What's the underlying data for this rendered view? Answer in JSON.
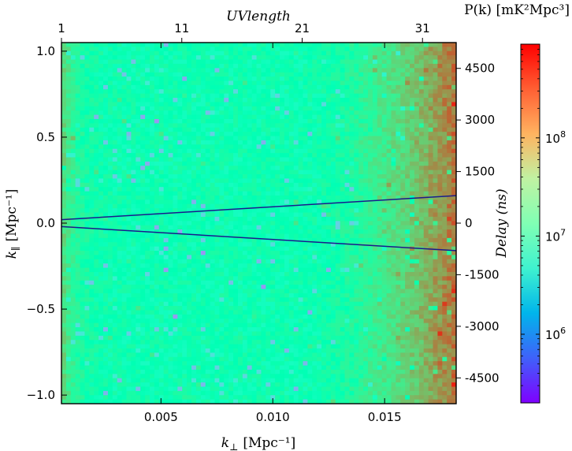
{
  "chart_data": {
    "type": "heatmap",
    "title": "",
    "xlabel": "k⊥ [Mpc⁻¹]",
    "xlabel_main": "k",
    "xlabel_sub": "⊥",
    "xlabel_unit": "[Mpc⁻¹]",
    "ylabel": "k∥ [Mpc⁻¹]",
    "ylabel_main": "k",
    "ylabel_sub": "∥",
    "ylabel_unit": "[Mpc⁻¹]",
    "top_axis_label": "UVlength",
    "right_axis_label": "Delay (ns)",
    "colorbar_label": "P(k) [mK²Mpc³]",
    "xlim": [
      0.00055,
      0.0182
    ],
    "ylim": [
      -1.05,
      1.05
    ],
    "x_ticks": [
      {
        "value": 0.005,
        "label": "0.005"
      },
      {
        "value": 0.01,
        "label": "0.010"
      },
      {
        "value": 0.015,
        "label": "0.015"
      }
    ],
    "y_ticks": [
      {
        "value": 1.0,
        "label": "1.0"
      },
      {
        "value": 0.5,
        "label": "0.5"
      },
      {
        "value": 0.0,
        "label": "0.0"
      },
      {
        "value": -0.5,
        "label": "−0.5"
      },
      {
        "value": -1.0,
        "label": "−1.0"
      }
    ],
    "top_ticks": [
      {
        "value": 1,
        "label": "1"
      },
      {
        "value": 11,
        "label": "11"
      },
      {
        "value": 21,
        "label": "21"
      },
      {
        "value": 31,
        "label": "31"
      }
    ],
    "top_range": [
      1,
      33.8
    ],
    "right_ticks": [
      {
        "value": 4500,
        "label": "4500"
      },
      {
        "value": 3000,
        "label": "3000"
      },
      {
        "value": 1500,
        "label": "1500"
      },
      {
        "value": 0,
        "label": "0"
      },
      {
        "value": -1500,
        "label": "-1500"
      },
      {
        "value": -3000,
        "label": "-3000"
      },
      {
        "value": -4500,
        "label": "-4500"
      }
    ],
    "right_range": [
      -5250,
      5250
    ],
    "colorbar": {
      "scale": "log",
      "range": [
        200000,
        900000000
      ],
      "ticks": [
        {
          "value": 1000000,
          "base": "10",
          "exp": "6"
        },
        {
          "value": 10000000,
          "base": "10",
          "exp": "7"
        },
        {
          "value": 100000000,
          "base": "10",
          "exp": "8"
        }
      ]
    },
    "grid": {
      "nx": 85,
      "ny": 85,
      "background_log10_power": 7.15,
      "edge_log10_power_left": 7.75,
      "edge_log10_power_right": 8.4,
      "note": "noise-like power spectrum; rises toward right edge (high k-perp)"
    },
    "wedge_lines": [
      {
        "name": "upper horizon line",
        "points": [
          [
            0.00055,
            0.02
          ],
          [
            0.0182,
            0.16
          ]
        ]
      },
      {
        "name": "lower horizon line",
        "points": [
          [
            0.00055,
            -0.02
          ],
          [
            0.0182,
            -0.16
          ]
        ]
      }
    ],
    "line_color": "#1a1a8c"
  }
}
